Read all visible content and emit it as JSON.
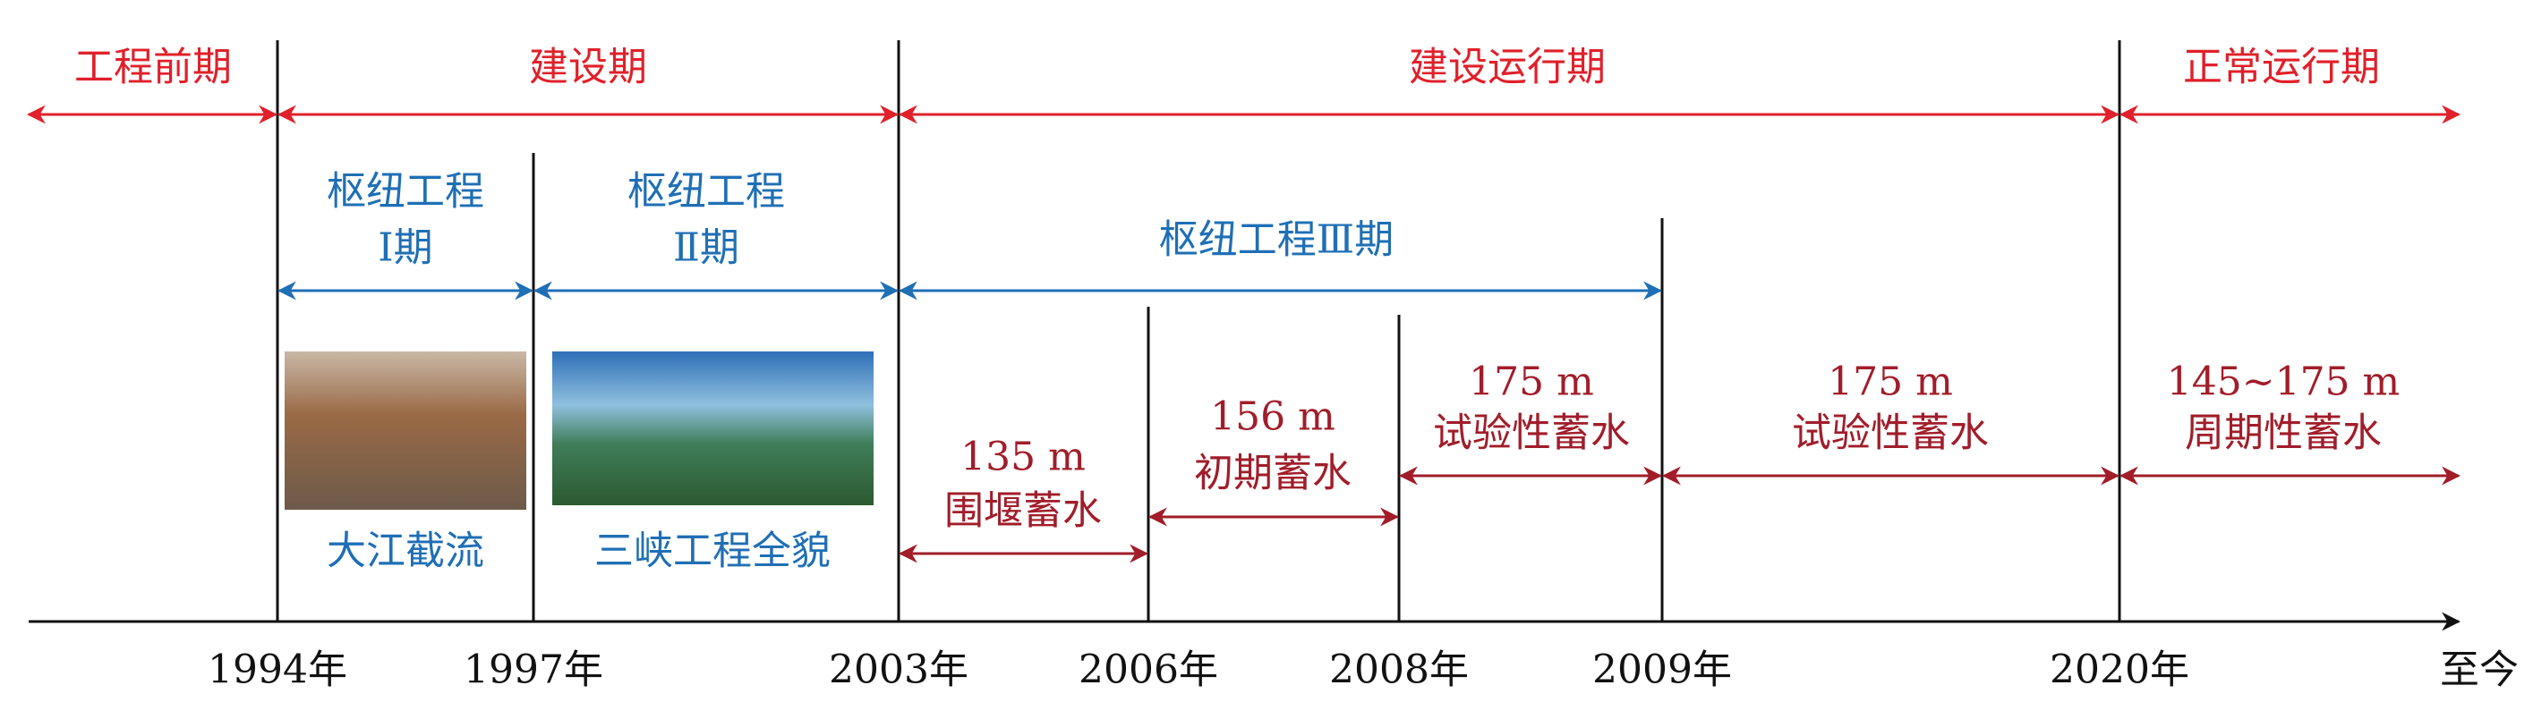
{
  "phases": [
    "工程前期",
    "建设期",
    "建设运行期",
    "正常运行期"
  ],
  "stages": [
    {
      "line1": "枢纽工程",
      "line2": "Ⅰ期"
    },
    {
      "line1": "枢纽工程",
      "line2": "Ⅱ期"
    },
    {
      "line1": "枢纽工程Ⅲ期"
    }
  ],
  "photos": [
    {
      "caption": "大江截流"
    },
    {
      "caption": "三峡工程全貌"
    }
  ],
  "storage": [
    {
      "level": "135 m",
      "label": "围堰蓄水"
    },
    {
      "level": "156 m",
      "label": "初期蓄水"
    },
    {
      "level": "175 m",
      "label": "试验性蓄水"
    },
    {
      "level": "175 m",
      "label": "试验性蓄水"
    },
    {
      "level": "145~175 m",
      "label": "周期性蓄水"
    }
  ],
  "years": [
    "1994年",
    "1997年",
    "2003年",
    "2006年",
    "2008年",
    "2009年",
    "2020年",
    "至今"
  ]
}
